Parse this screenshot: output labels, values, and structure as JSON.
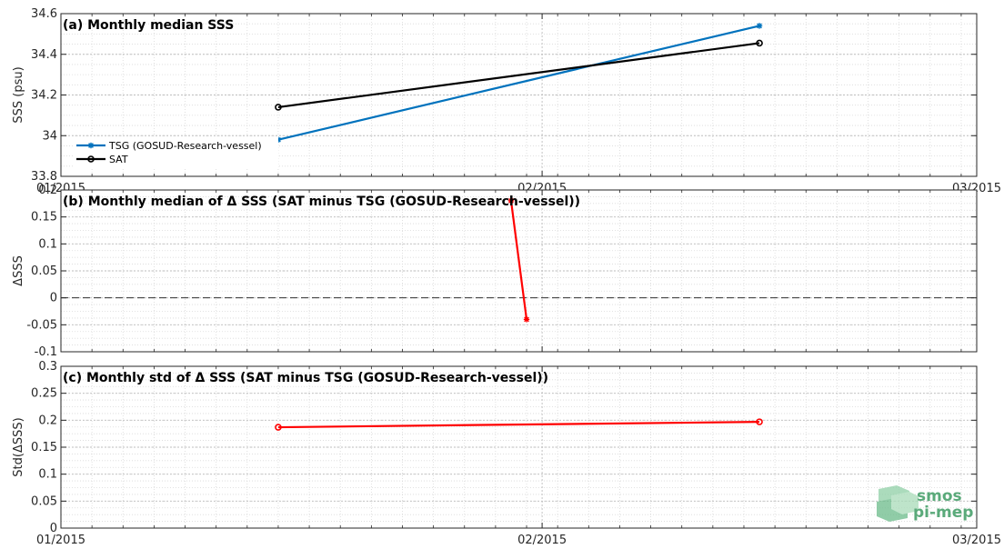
{
  "chart_data": [
    {
      "type": "line",
      "title": "(a) Monthly median SSS",
      "ylabel": "SSS (psu)",
      "xlabel": "",
      "x_tick_labels": [
        "01/2015",
        "02/2015",
        "03/2015"
      ],
      "x_tick_values": [
        "2015-01-01",
        "2015-02-01",
        "2015-03-01"
      ],
      "xlim": [
        "2015-01-01",
        "2015-03-01"
      ],
      "ylim": [
        33.8,
        34.6
      ],
      "y_ticks": [
        33.8,
        34,
        34.2,
        34.4,
        34.6
      ],
      "y_tick_labels": [
        "33.8",
        "34",
        "34.2",
        "34.4",
        "34.6"
      ],
      "grid": true,
      "legend_placement": "left",
      "series": [
        {
          "name": "TSG (GOSUD-Research-vessel)",
          "color": "#0072bd",
          "marker": "asterisk",
          "x": [
            "2015-01-15",
            "2015-02-15"
          ],
          "y": [
            33.98,
            34.54
          ]
        },
        {
          "name": "SAT",
          "color": "#000000",
          "marker": "circle",
          "x": [
            "2015-01-15",
            "2015-02-15"
          ],
          "y": [
            34.14,
            34.455
          ]
        }
      ]
    },
    {
      "type": "line",
      "title": "(b) Monthly median of Δ SSS (SAT minus TSG (GOSUD-Research-vessel))",
      "ylabel": "ΔSSS",
      "xlabel": "",
      "x_tick_labels": [
        "",
        "",
        ""
      ],
      "x_tick_values": [
        "2015-01-01",
        "2015-02-01",
        "2015-03-01"
      ],
      "xlim": [
        "2015-01-01",
        "2015-03-01"
      ],
      "ylim": [
        -0.1,
        0.2
      ],
      "y_ticks": [
        -0.1,
        -0.05,
        0,
        0.05,
        0.1,
        0.15,
        0.2
      ],
      "y_tick_labels": [
        "-0.1",
        "-0.05",
        "0",
        "0.05",
        "0.1",
        "0.15",
        "0.2"
      ],
      "grid": true,
      "zero_line": true,
      "series": [
        {
          "color": "#ff0000",
          "marker": "asterisk",
          "x": [
            "2015-01-30",
            "2015-01-31"
          ],
          "y": [
            0.18,
            -0.04
          ]
        }
      ]
    },
    {
      "type": "line",
      "title": "(c) Monthly std of Δ SSS (SAT minus TSG (GOSUD-Research-vessel))",
      "ylabel": "Std(ΔSSS)",
      "xlabel": "",
      "x_tick_labels": [
        "01/2015",
        "02/2015",
        "03/2015"
      ],
      "x_tick_values": [
        "2015-01-01",
        "2015-02-01",
        "2015-03-01"
      ],
      "xlim": [
        "2015-01-01",
        "2015-03-01"
      ],
      "ylim": [
        0,
        0.3
      ],
      "y_ticks": [
        0,
        0.05,
        0.1,
        0.15,
        0.2,
        0.25,
        0.3
      ],
      "y_tick_labels": [
        "0",
        "0.05",
        "0.1",
        "0.15",
        "0.2",
        "0.25",
        "0.3"
      ],
      "grid": true,
      "series": [
        {
          "color": "#ff0000",
          "marker": "circle",
          "x": [
            "2015-01-15",
            "2015-02-15"
          ],
          "y": [
            0.187,
            0.197
          ]
        }
      ]
    }
  ],
  "logo": {
    "line1": "smos",
    "line2": "pi-mep",
    "color": "#5aaa7a"
  }
}
